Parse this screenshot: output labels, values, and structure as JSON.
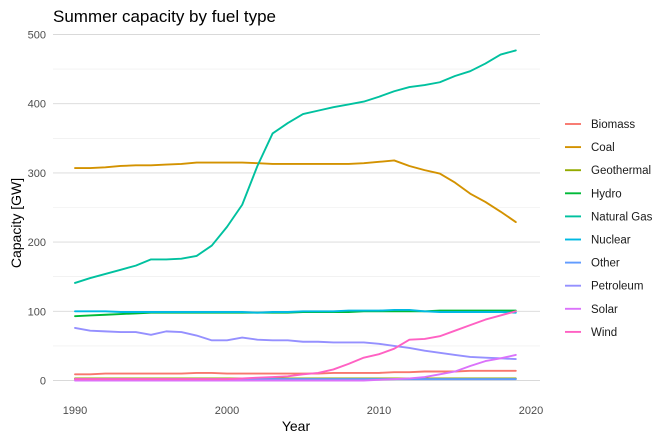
{
  "chart_data": {
    "type": "line",
    "title": "Summer capacity by fuel type",
    "xlabel": "Year",
    "ylabel": "Capacity [GW]",
    "xlim": [
      1990,
      2019
    ],
    "ylim": [
      -20,
      505
    ],
    "x_ticks": [
      1990,
      2000,
      2010,
      2020
    ],
    "y_ticks": [
      0,
      100,
      200,
      300,
      400,
      500
    ],
    "grid": true,
    "legend_position": "right",
    "x": [
      1990,
      1991,
      1992,
      1993,
      1994,
      1995,
      1996,
      1997,
      1998,
      1999,
      2000,
      2001,
      2002,
      2003,
      2004,
      2005,
      2006,
      2007,
      2008,
      2009,
      2010,
      2011,
      2012,
      2013,
      2014,
      2015,
      2016,
      2017,
      2018,
      2019
    ],
    "series": [
      {
        "name": "Biomass",
        "color": "#F8766D",
        "values": [
          9,
          9,
          10,
          10,
          10,
          10,
          10,
          10,
          11,
          11,
          10,
          10,
          10,
          10,
          10,
          10,
          10,
          11,
          11,
          11,
          11,
          12,
          12,
          13,
          13,
          13,
          14,
          14,
          14,
          14
        ]
      },
      {
        "name": "Coal",
        "color": "#D39200",
        "values": [
          307,
          307,
          308,
          310,
          311,
          311,
          312,
          313,
          315,
          315,
          315,
          315,
          314,
          313,
          313,
          313,
          313,
          313,
          313,
          314,
          316,
          318,
          310,
          304,
          299,
          286,
          270,
          258,
          244,
          229
        ]
      },
      {
        "name": "Geothermal",
        "color": "#93AA00",
        "values": [
          3,
          3,
          3,
          3,
          3,
          3,
          3,
          3,
          3,
          3,
          3,
          3,
          3,
          3,
          3,
          3,
          3,
          3,
          3,
          3,
          3,
          3,
          3,
          3,
          3,
          3,
          3,
          3,
          3,
          3
        ]
      },
      {
        "name": "Hydro",
        "color": "#00BA38",
        "values": [
          93,
          94,
          95,
          96,
          97,
          98,
          98,
          98,
          98,
          98,
          98,
          98,
          98,
          98,
          98,
          99,
          99,
          99,
          99,
          100,
          100,
          100,
          100,
          100,
          101,
          101,
          101,
          101,
          101,
          101
        ]
      },
      {
        "name": "Natural Gas",
        "color": "#00C19F",
        "values": [
          141,
          148,
          154,
          160,
          166,
          175,
          175,
          176,
          180,
          195,
          222,
          254,
          310,
          357,
          372,
          385,
          390,
          395,
          399,
          403,
          410,
          418,
          424,
          427,
          431,
          440,
          447,
          458,
          471,
          477
        ]
      },
      {
        "name": "Nuclear",
        "color": "#00B9E3",
        "values": [
          100,
          100,
          100,
          99,
          99,
          99,
          99,
          99,
          99,
          99,
          99,
          99,
          98,
          99,
          99,
          100,
          100,
          100,
          101,
          101,
          101,
          102,
          102,
          100,
          99,
          99,
          99,
          99,
          99,
          98
        ]
      },
      {
        "name": "Other",
        "color": "#619CFF",
        "values": [
          2,
          2,
          2,
          2,
          2,
          2,
          2,
          2,
          2,
          2,
          2,
          2,
          2,
          2,
          2,
          2,
          2,
          2,
          2,
          2,
          2,
          2,
          2,
          2,
          2,
          2,
          2,
          2,
          2,
          2
        ]
      },
      {
        "name": "Petroleum",
        "color": "#9590FF",
        "values": [
          76,
          72,
          71,
          70,
          70,
          66,
          71,
          70,
          65,
          58,
          58,
          62,
          59,
          58,
          58,
          56,
          56,
          55,
          55,
          55,
          53,
          50,
          47,
          43,
          40,
          37,
          34,
          33,
          32,
          31
        ]
      },
      {
        "name": "Solar",
        "color": "#DB72FB",
        "values": [
          0,
          0,
          0,
          0,
          0,
          0,
          0,
          0,
          0,
          0,
          0,
          0,
          0,
          0,
          0,
          0,
          0,
          0,
          0,
          0,
          1,
          2,
          3,
          5,
          9,
          13,
          21,
          28,
          32,
          37
        ]
      },
      {
        "name": "Wind",
        "color": "#FF61C3",
        "values": [
          2,
          2,
          2,
          2,
          2,
          2,
          2,
          2,
          2,
          2,
          2,
          3,
          4,
          5,
          6,
          9,
          11,
          16,
          24,
          33,
          38,
          46,
          59,
          60,
          64,
          72,
          80,
          88,
          94,
          100
        ]
      }
    ]
  }
}
